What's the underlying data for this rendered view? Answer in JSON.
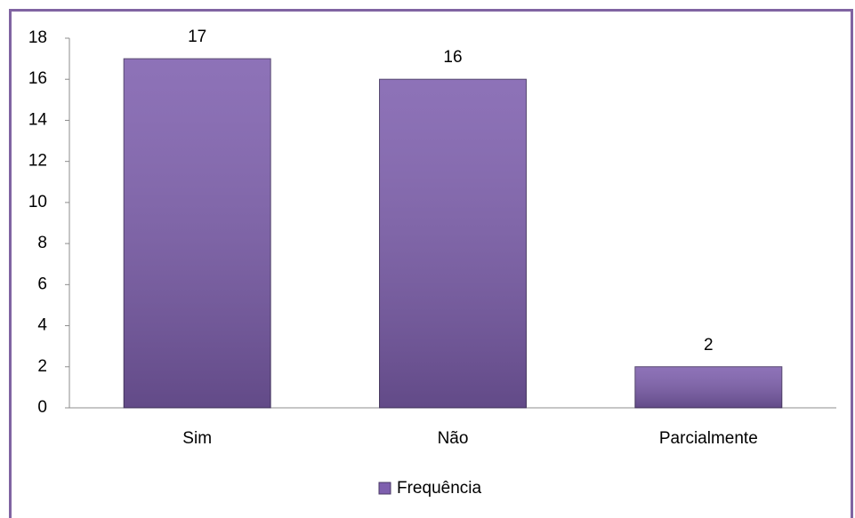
{
  "chart_data": {
    "type": "bar",
    "categories": [
      "Sim",
      "Não",
      "Parcialmente"
    ],
    "series": [
      {
        "name": "Frequência",
        "color": "#7e5fae",
        "values": [
          17,
          16,
          2
        ]
      }
    ],
    "ylim": [
      0,
      18
    ],
    "yticks": [
      0,
      2,
      4,
      6,
      8,
      10,
      12,
      14,
      16,
      18
    ],
    "grid": false,
    "legend": "bottom"
  }
}
